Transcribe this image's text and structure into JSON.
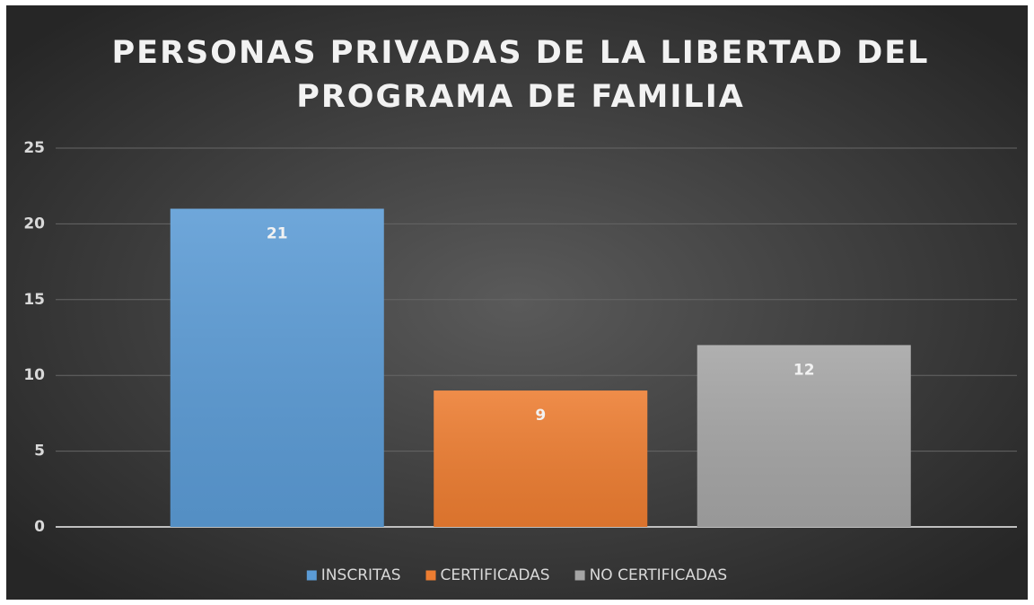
{
  "chart_data": {
    "type": "bar",
    "title": [
      "PERSONAS PRIVADAS DE LA LIBERTAD DEL",
      "PROGRAMA DE FAMILIA"
    ],
    "categories": [
      "INSCRITAS",
      "CERTIFICADAS",
      "NO CERTIFICADAS"
    ],
    "values": [
      21,
      9,
      12
    ],
    "colors": [
      "#5b9bd5",
      "#ed7d31",
      "#a5a5a5"
    ],
    "ylim": [
      0,
      25
    ],
    "yticks": [
      0,
      5,
      10,
      15,
      20,
      25
    ],
    "grid": true,
    "legend": "bottom"
  }
}
